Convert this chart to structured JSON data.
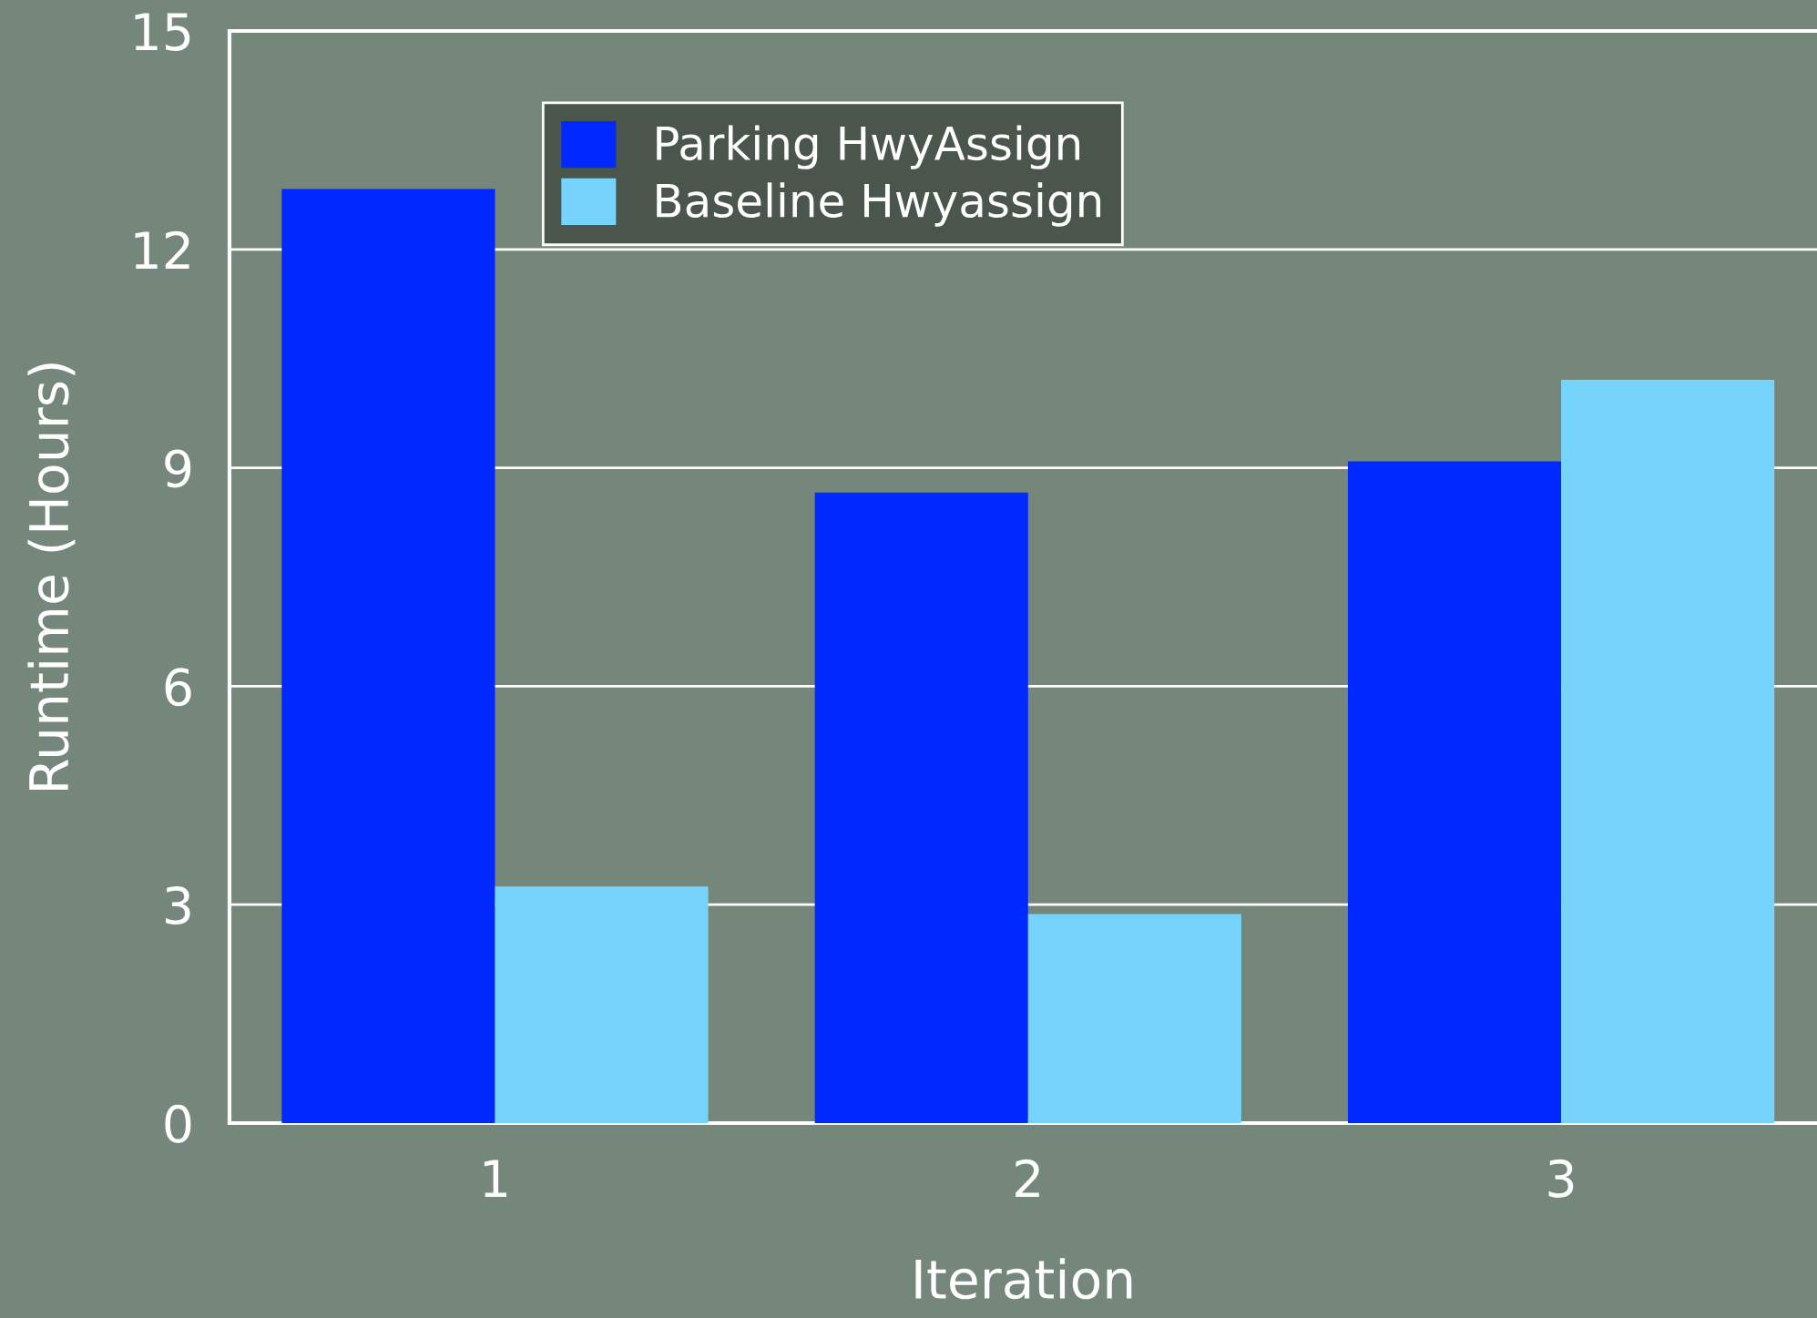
{
  "chart_data": {
    "type": "bar",
    "xlabel": "Iteration",
    "ylabel": "Runtime (Hours)",
    "categories": [
      "1",
      "2",
      "3"
    ],
    "series": [
      {
        "name": "Parking HwyAssign",
        "color": "#0029ff",
        "values": [
          12.83,
          8.66,
          9.09
        ]
      },
      {
        "name": "Baseline Hwyassign",
        "color": "#76d4fc",
        "values": [
          3.25,
          2.87,
          10.21
        ]
      }
    ],
    "ylim": [
      0,
      15
    ],
    "yticks": [
      0,
      3,
      6,
      9,
      12,
      15
    ],
    "grid": "y",
    "legend": "top"
  }
}
